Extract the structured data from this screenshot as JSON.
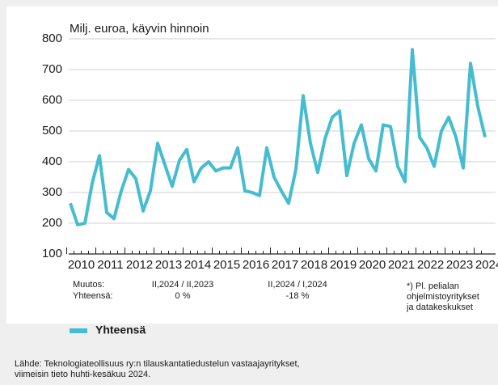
{
  "chart_data": {
    "type": "line",
    "ylabel": "Milj. euroa, käyvin hinnoin",
    "categories": [
      "2010",
      null,
      null,
      null,
      "2011",
      null,
      null,
      null,
      "2012",
      null,
      null,
      null,
      "2013",
      null,
      null,
      null,
      "2014",
      null,
      null,
      null,
      "2015",
      null,
      null,
      null,
      "2016",
      null,
      null,
      null,
      "2017",
      null,
      null,
      null,
      "2018",
      null,
      null,
      null,
      "2019",
      null,
      null,
      null,
      "2020",
      null,
      null,
      null,
      "2021",
      null,
      null,
      null,
      "2022",
      null,
      null,
      null,
      "2023",
      null,
      null,
      null,
      "2024",
      null
    ],
    "series": [
      {
        "name": "Yhteensä",
        "color": "#45bccf",
        "values": [
          265,
          195,
          200,
          330,
          420,
          235,
          215,
          305,
          375,
          345,
          240,
          305,
          460,
          390,
          320,
          405,
          440,
          335,
          380,
          400,
          370,
          380,
          380,
          445,
          305,
          300,
          290,
          445,
          350,
          305,
          265,
          375,
          615,
          460,
          365,
          475,
          545,
          565,
          355,
          460,
          520,
          410,
          370,
          520,
          515,
          385,
          335,
          765,
          480,
          445,
          385,
          500,
          545,
          480,
          380,
          720,
          580,
          480
        ]
      }
    ],
    "ylim": [
      100,
      800
    ],
    "yticks": [
      100,
      200,
      300,
      400,
      500,
      600,
      700,
      800
    ],
    "grid": true,
    "change": {
      "label1": "Muutos:",
      "label2": "Yhteensä:",
      "col1": {
        "period": "II,2024 / II,2023",
        "value": "0 %"
      },
      "col2": {
        "period": "II,2024 / I,2024",
        "value": "-18 %"
      }
    },
    "note": [
      "*) Pl. pelialan",
      "ohjelmistoyritykset",
      "ja datakeskukset"
    ],
    "source": [
      "Lähde: Teknologiateollisuus ry:n tilauskantatiedustelun vastaajayritykset,",
      "viimeisin tieto huhti-kesäkuu 2024."
    ]
  }
}
